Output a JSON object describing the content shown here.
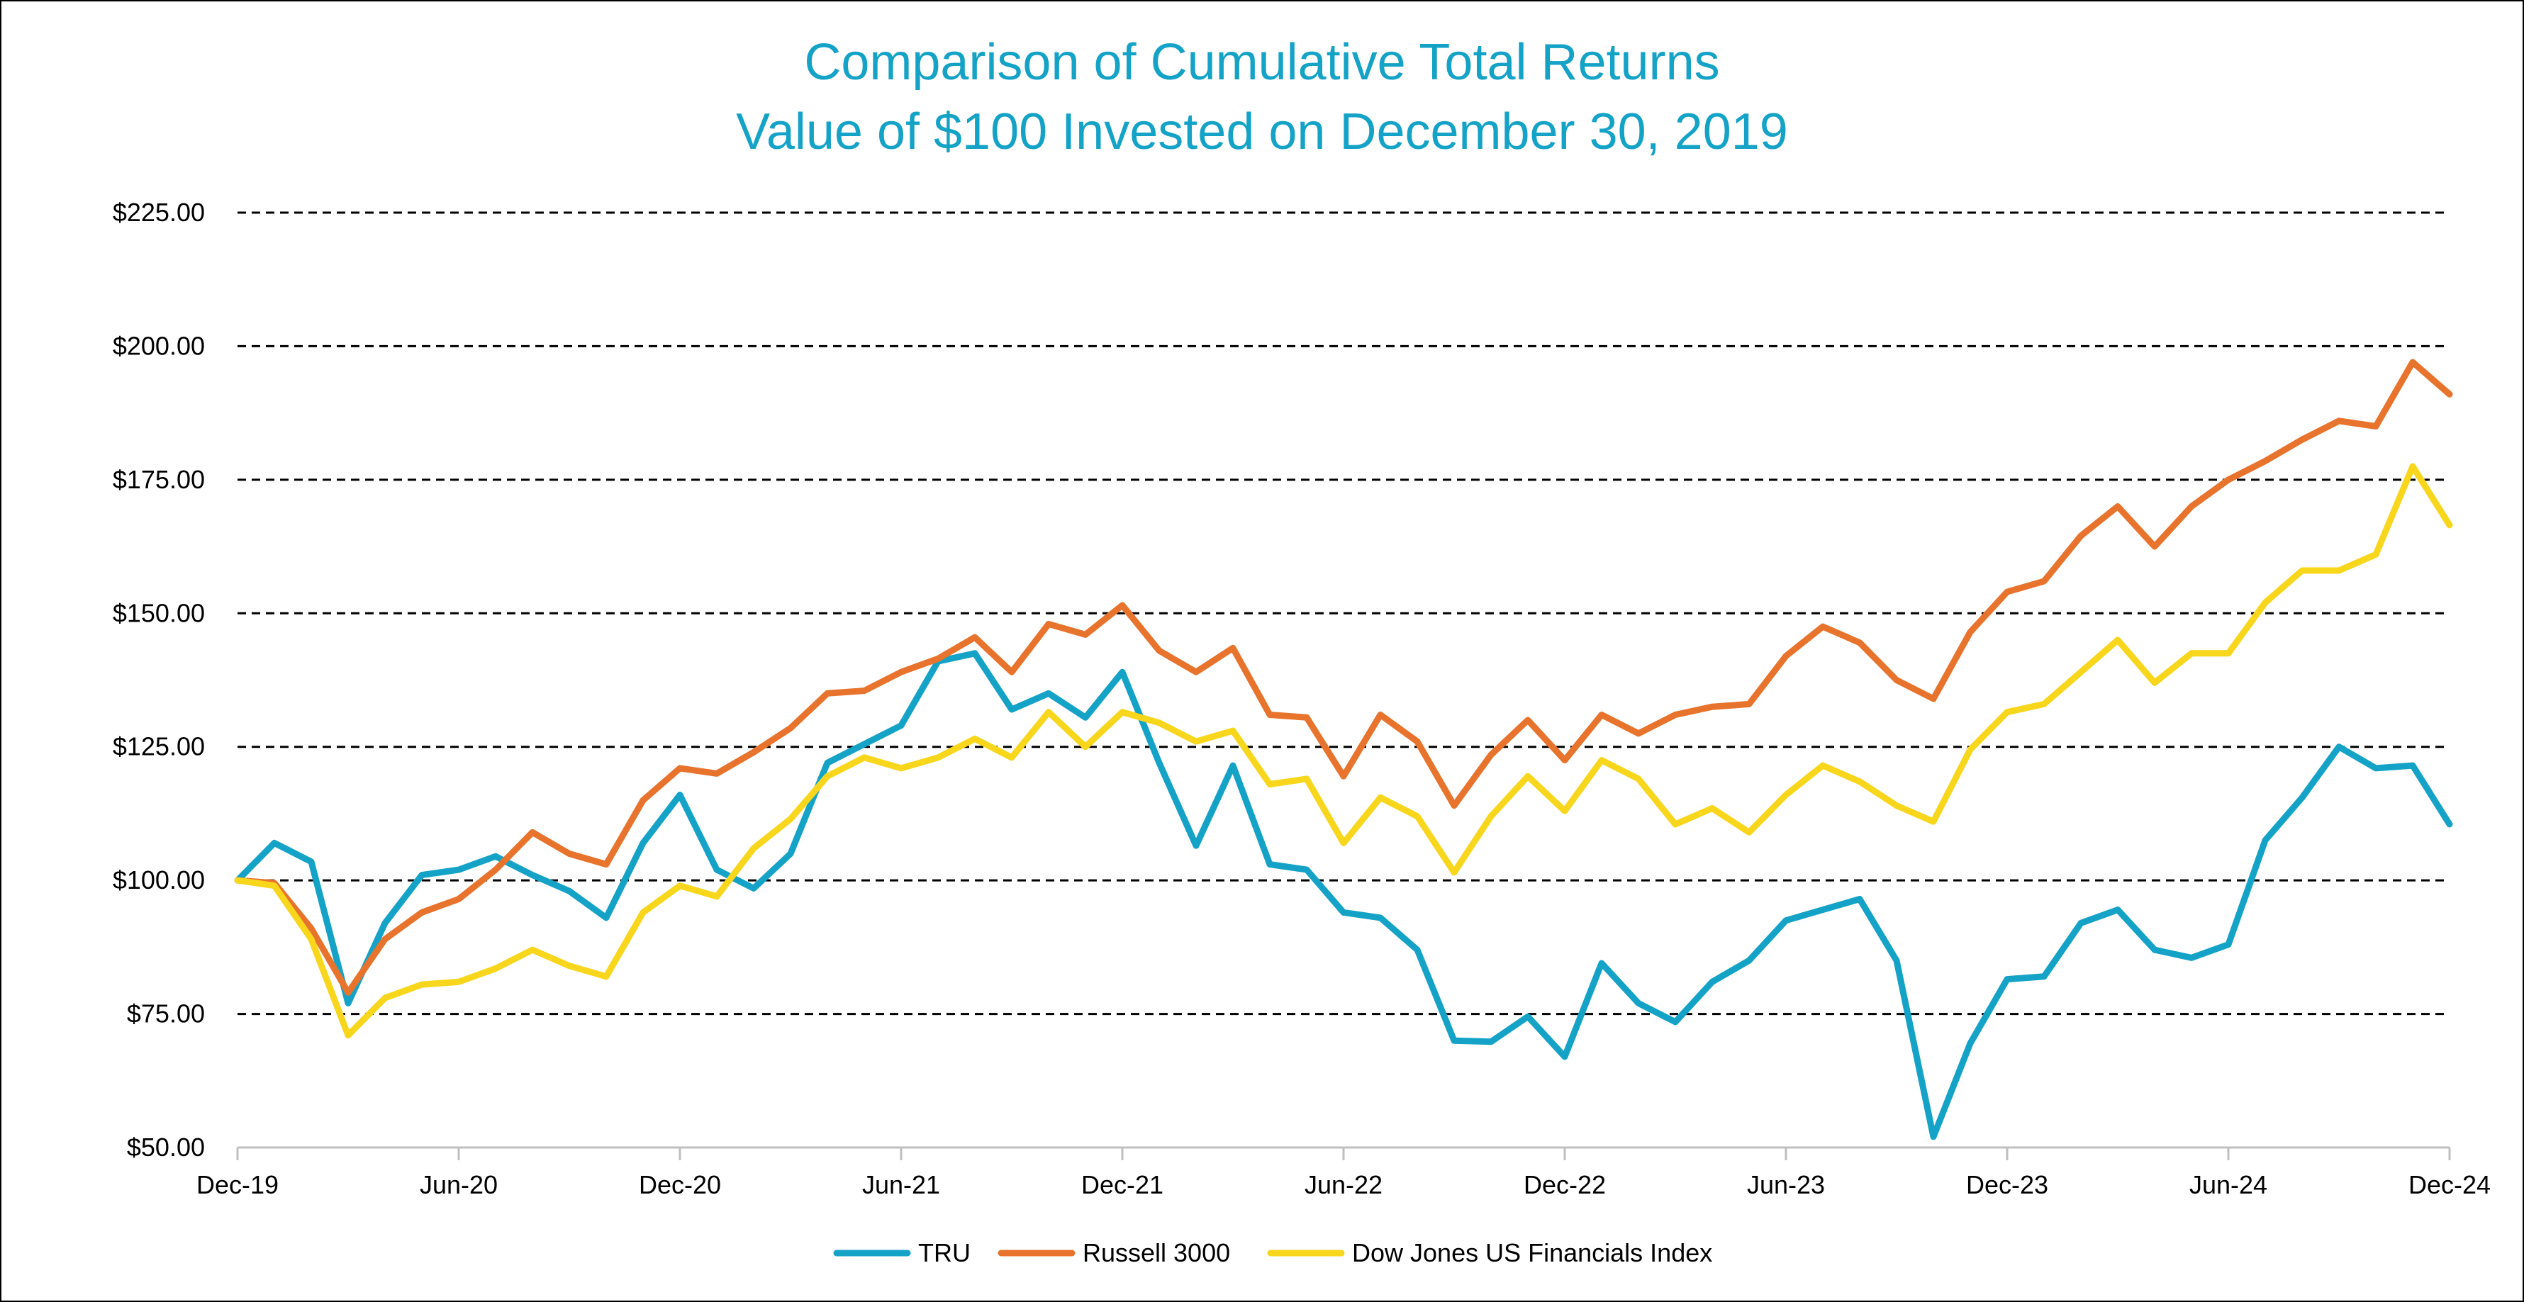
{
  "chart_data": {
    "type": "line",
    "title": "Comparison of Cumulative Total Returns",
    "subtitle": "Value of $100 Invested on December 30, 2019",
    "x_tick_labels": [
      "Dec-19",
      "Jun-20",
      "Dec-20",
      "Jun-21",
      "Dec-21",
      "Jun-22",
      "Dec-22",
      "Jun-23",
      "Dec-23",
      "Jun-24",
      "Dec-24"
    ],
    "y_tick_labels": [
      "$50.00",
      "$75.00",
      "$100.00",
      "$125.00",
      "$150.00",
      "$175.00",
      "$200.00",
      "$225.00"
    ],
    "y_ticks": [
      50,
      75,
      100,
      125,
      150,
      175,
      200,
      225
    ],
    "ylim": [
      50,
      225
    ],
    "grid": true,
    "legend_position": "bottom",
    "colors": {
      "title": "#14a3c7",
      "TRU": "#14a3c7",
      "Russell 3000": "#e8732c",
      "Dow Jones US Financials Index": "#f8d61c"
    },
    "series": [
      {
        "name": "TRU",
        "values": [
          100.0,
          107.0,
          103.5,
          77.0,
          92.0,
          101.0,
          102.0,
          104.5,
          101.0,
          98.0,
          93.0,
          107.0,
          116.0,
          102.0,
          98.5,
          105.0,
          122.0,
          125.5,
          129.0,
          141.0,
          142.5,
          132.0,
          135.0,
          130.5,
          139.0,
          122.0,
          106.5,
          121.5,
          103.0,
          102.0,
          94.0,
          93.0,
          87.0,
          70.0,
          69.8,
          74.5,
          67.0,
          84.5,
          77.0,
          73.5,
          81.0,
          85.0,
          92.5,
          94.5,
          96.5,
          85.0,
          52.0,
          69.5,
          81.5,
          82.0,
          92.0,
          94.5,
          87.0,
          85.5,
          88.0,
          107.5,
          115.5,
          125.0,
          121.0,
          121.5,
          110.5
        ]
      },
      {
        "name": "Russell 3000",
        "values": [
          100.0,
          99.5,
          91.0,
          79.0,
          89.0,
          94.0,
          96.5,
          102.0,
          109.0,
          105.0,
          103.0,
          115.0,
          121.0,
          120.0,
          124.0,
          128.5,
          135.0,
          135.5,
          139.0,
          141.5,
          145.5,
          139.0,
          148.0,
          146.0,
          151.5,
          143.0,
          139.0,
          143.5,
          131.0,
          130.5,
          119.5,
          131.0,
          126.0,
          114.0,
          123.5,
          130.0,
          122.5,
          131.0,
          127.5,
          131.0,
          132.5,
          133.0,
          142.0,
          147.5,
          144.5,
          137.5,
          134.0,
          146.5,
          154.0,
          156.0,
          164.5,
          170.0,
          162.5,
          170.0,
          175.0,
          178.5,
          182.5,
          186.0,
          185.0,
          197.0,
          191.0
        ]
      },
      {
        "name": "Dow Jones US Financials Index",
        "values": [
          100.0,
          99.0,
          89.0,
          71.0,
          78.0,
          80.5,
          81.0,
          83.5,
          87.0,
          84.0,
          82.0,
          94.0,
          99.0,
          97.0,
          106.0,
          111.5,
          119.5,
          123.0,
          121.0,
          123.0,
          126.5,
          123.0,
          131.5,
          125.0,
          131.5,
          129.5,
          126.0,
          128.0,
          118.0,
          119.0,
          107.0,
          115.5,
          112.0,
          101.5,
          112.0,
          119.5,
          113.0,
          122.5,
          119.0,
          110.5,
          113.5,
          109.0,
          116.0,
          121.5,
          118.5,
          114.0,
          111.0,
          124.5,
          131.5,
          133.0,
          139.0,
          145.0,
          137.0,
          142.5,
          142.5,
          152.0,
          158.0,
          158.0,
          161.0,
          177.5,
          166.5
        ]
      }
    ]
  }
}
